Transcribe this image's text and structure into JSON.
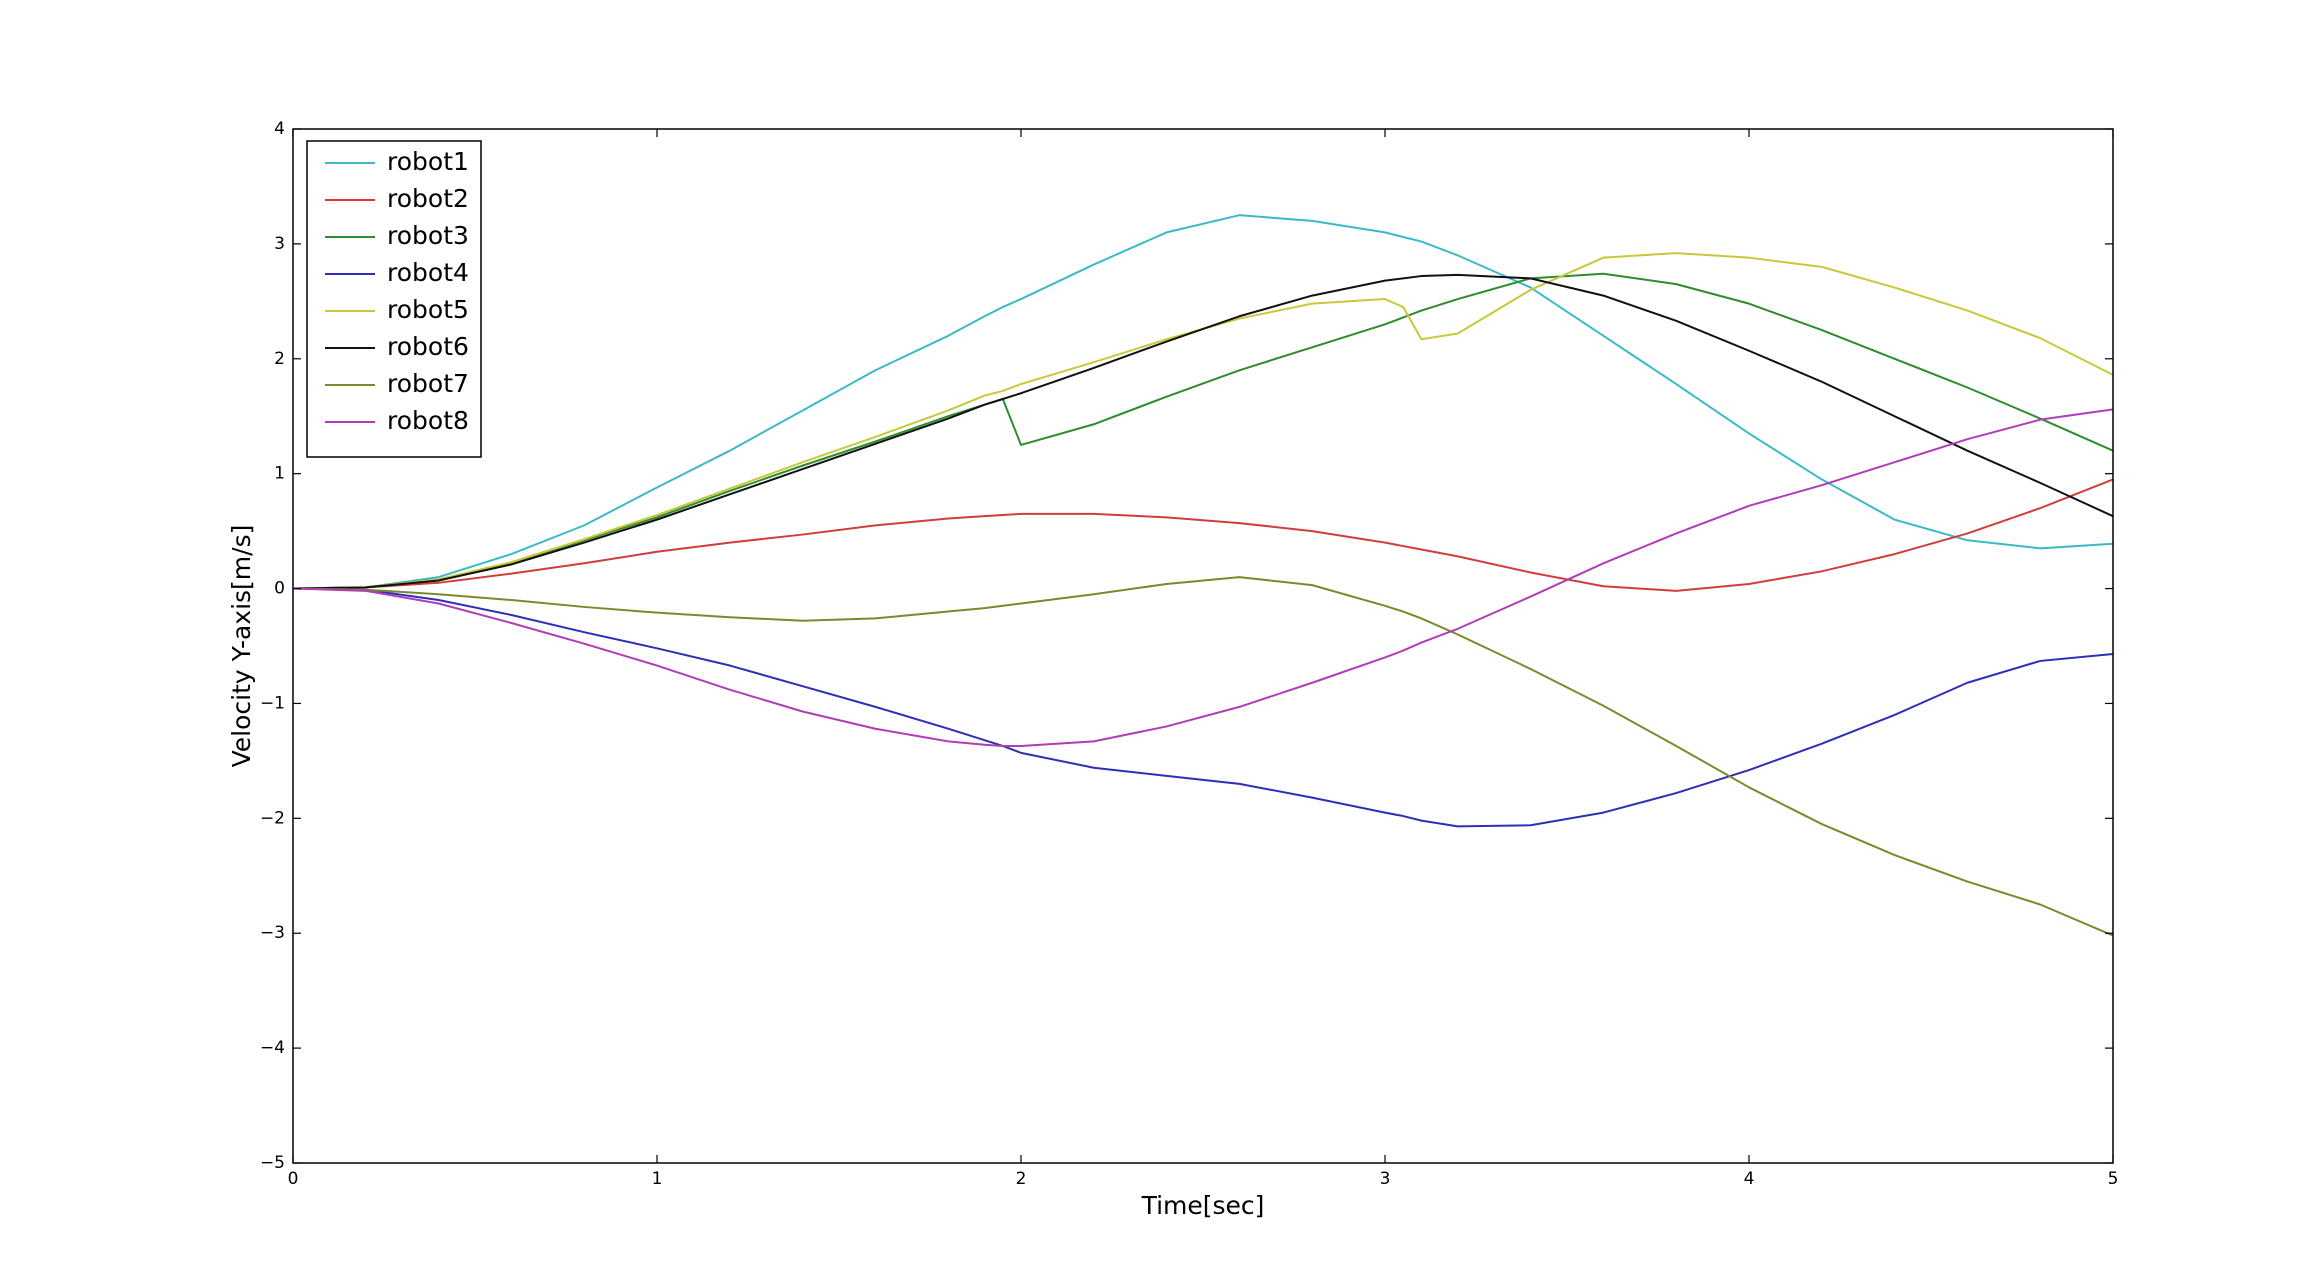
{
  "chart_data": {
    "type": "line",
    "xlabel": "Time[sec]",
    "ylabel": "Velocity Y-axis[m/s]",
    "legend": "upper left",
    "xlim": [
      0,
      5
    ],
    "ylim": [
      -5,
      4
    ],
    "xticks": [
      0,
      1,
      2,
      3,
      4,
      5
    ],
    "yticks": [
      {
        "value": -5,
        "label": "−5"
      },
      {
        "value": -4,
        "label": "−4"
      },
      {
        "value": -3,
        "label": "−3"
      },
      {
        "value": -2,
        "label": "−2"
      },
      {
        "value": -1,
        "label": "−1"
      },
      0,
      1,
      2,
      3,
      4
    ],
    "x": [
      0,
      0.2,
      0.4,
      0.6,
      0.8,
      1.0,
      1.2,
      1.4,
      1.6,
      1.8,
      1.9,
      1.95,
      2.0,
      2.2,
      2.4,
      2.6,
      2.8,
      3.0,
      3.05,
      3.1,
      3.2,
      3.4,
      3.6,
      3.8,
      4.0,
      4.2,
      4.4,
      4.6,
      4.8,
      5.0
    ],
    "series": [
      {
        "name": "robot1",
        "color": "#3cb9c6",
        "values": [
          0,
          0.01,
          0.1,
          0.3,
          0.55,
          0.88,
          1.2,
          1.55,
          1.9,
          2.2,
          2.37,
          2.45,
          2.52,
          2.82,
          3.1,
          3.25,
          3.2,
          3.1,
          3.06,
          3.02,
          2.9,
          2.62,
          2.2,
          1.78,
          1.35,
          0.95,
          0.6,
          0.42,
          0.35,
          0.39
        ]
      },
      {
        "name": "robot2",
        "color": "#d43c3c",
        "values": [
          0,
          0.01,
          0.05,
          0.13,
          0.22,
          0.32,
          0.4,
          0.47,
          0.55,
          0.61,
          0.63,
          0.64,
          0.65,
          0.65,
          0.62,
          0.57,
          0.5,
          0.4,
          0.37,
          0.34,
          0.28,
          0.14,
          0.02,
          -0.02,
          0.04,
          0.15,
          0.3,
          0.48,
          0.7,
          0.95
        ]
      },
      {
        "name": "robot3",
        "color": "#2e8b2e",
        "values": [
          0,
          0.01,
          0.08,
          0.22,
          0.42,
          0.62,
          0.85,
          1.07,
          1.28,
          1.5,
          1.6,
          1.65,
          1.25,
          1.43,
          1.67,
          1.9,
          2.1,
          2.3,
          2.36,
          2.42,
          2.52,
          2.7,
          2.74,
          2.65,
          2.48,
          2.25,
          2.0,
          1.75,
          1.48,
          1.2
        ]
      },
      {
        "name": "robot4",
        "color": "#2e2eb8",
        "values": [
          0,
          -0.01,
          -0.1,
          -0.23,
          -0.38,
          -0.52,
          -0.67,
          -0.85,
          -1.03,
          -1.22,
          -1.32,
          -1.37,
          -1.43,
          -1.56,
          -1.63,
          -1.7,
          -1.82,
          -1.95,
          -1.98,
          -2.02,
          -2.07,
          -2.06,
          -1.95,
          -1.78,
          -1.58,
          -1.35,
          -1.1,
          -0.82,
          -0.63,
          -0.57
        ]
      },
      {
        "name": "robot5",
        "color": "#c8c83a",
        "values": [
          0,
          0.01,
          0.08,
          0.23,
          0.43,
          0.64,
          0.87,
          1.1,
          1.32,
          1.55,
          1.68,
          1.72,
          1.78,
          1.97,
          2.17,
          2.35,
          2.48,
          2.52,
          2.45,
          2.17,
          2.22,
          2.6,
          2.88,
          2.92,
          2.88,
          2.8,
          2.62,
          2.42,
          2.18,
          1.86
        ]
      },
      {
        "name": "robot6",
        "color": "#111111",
        "values": [
          0,
          0.01,
          0.07,
          0.21,
          0.4,
          0.6,
          0.82,
          1.04,
          1.26,
          1.48,
          1.6,
          1.65,
          1.7,
          1.92,
          2.15,
          2.37,
          2.55,
          2.68,
          2.7,
          2.72,
          2.73,
          2.7,
          2.55,
          2.33,
          2.07,
          1.8,
          1.5,
          1.2,
          0.92,
          0.63
        ]
      },
      {
        "name": "robot7",
        "color": "#7a8a2a",
        "values": [
          0,
          -0.01,
          -0.05,
          -0.1,
          -0.16,
          -0.21,
          -0.25,
          -0.28,
          -0.26,
          -0.2,
          -0.17,
          -0.15,
          -0.13,
          -0.05,
          0.04,
          0.1,
          0.03,
          -0.15,
          -0.2,
          -0.26,
          -0.4,
          -0.7,
          -1.02,
          -1.37,
          -1.73,
          -2.05,
          -2.32,
          -2.55,
          -2.75,
          -3.02
        ]
      },
      {
        "name": "robot8",
        "color": "#b03cb8",
        "values": [
          0,
          -0.02,
          -0.13,
          -0.3,
          -0.48,
          -0.67,
          -0.88,
          -1.07,
          -1.22,
          -1.33,
          -1.36,
          -1.37,
          -1.37,
          -1.33,
          -1.2,
          -1.03,
          -0.82,
          -0.6,
          -0.54,
          -0.47,
          -0.35,
          -0.07,
          0.22,
          0.48,
          0.72,
          0.9,
          1.1,
          1.3,
          1.47,
          1.56
        ]
      }
    ]
  }
}
